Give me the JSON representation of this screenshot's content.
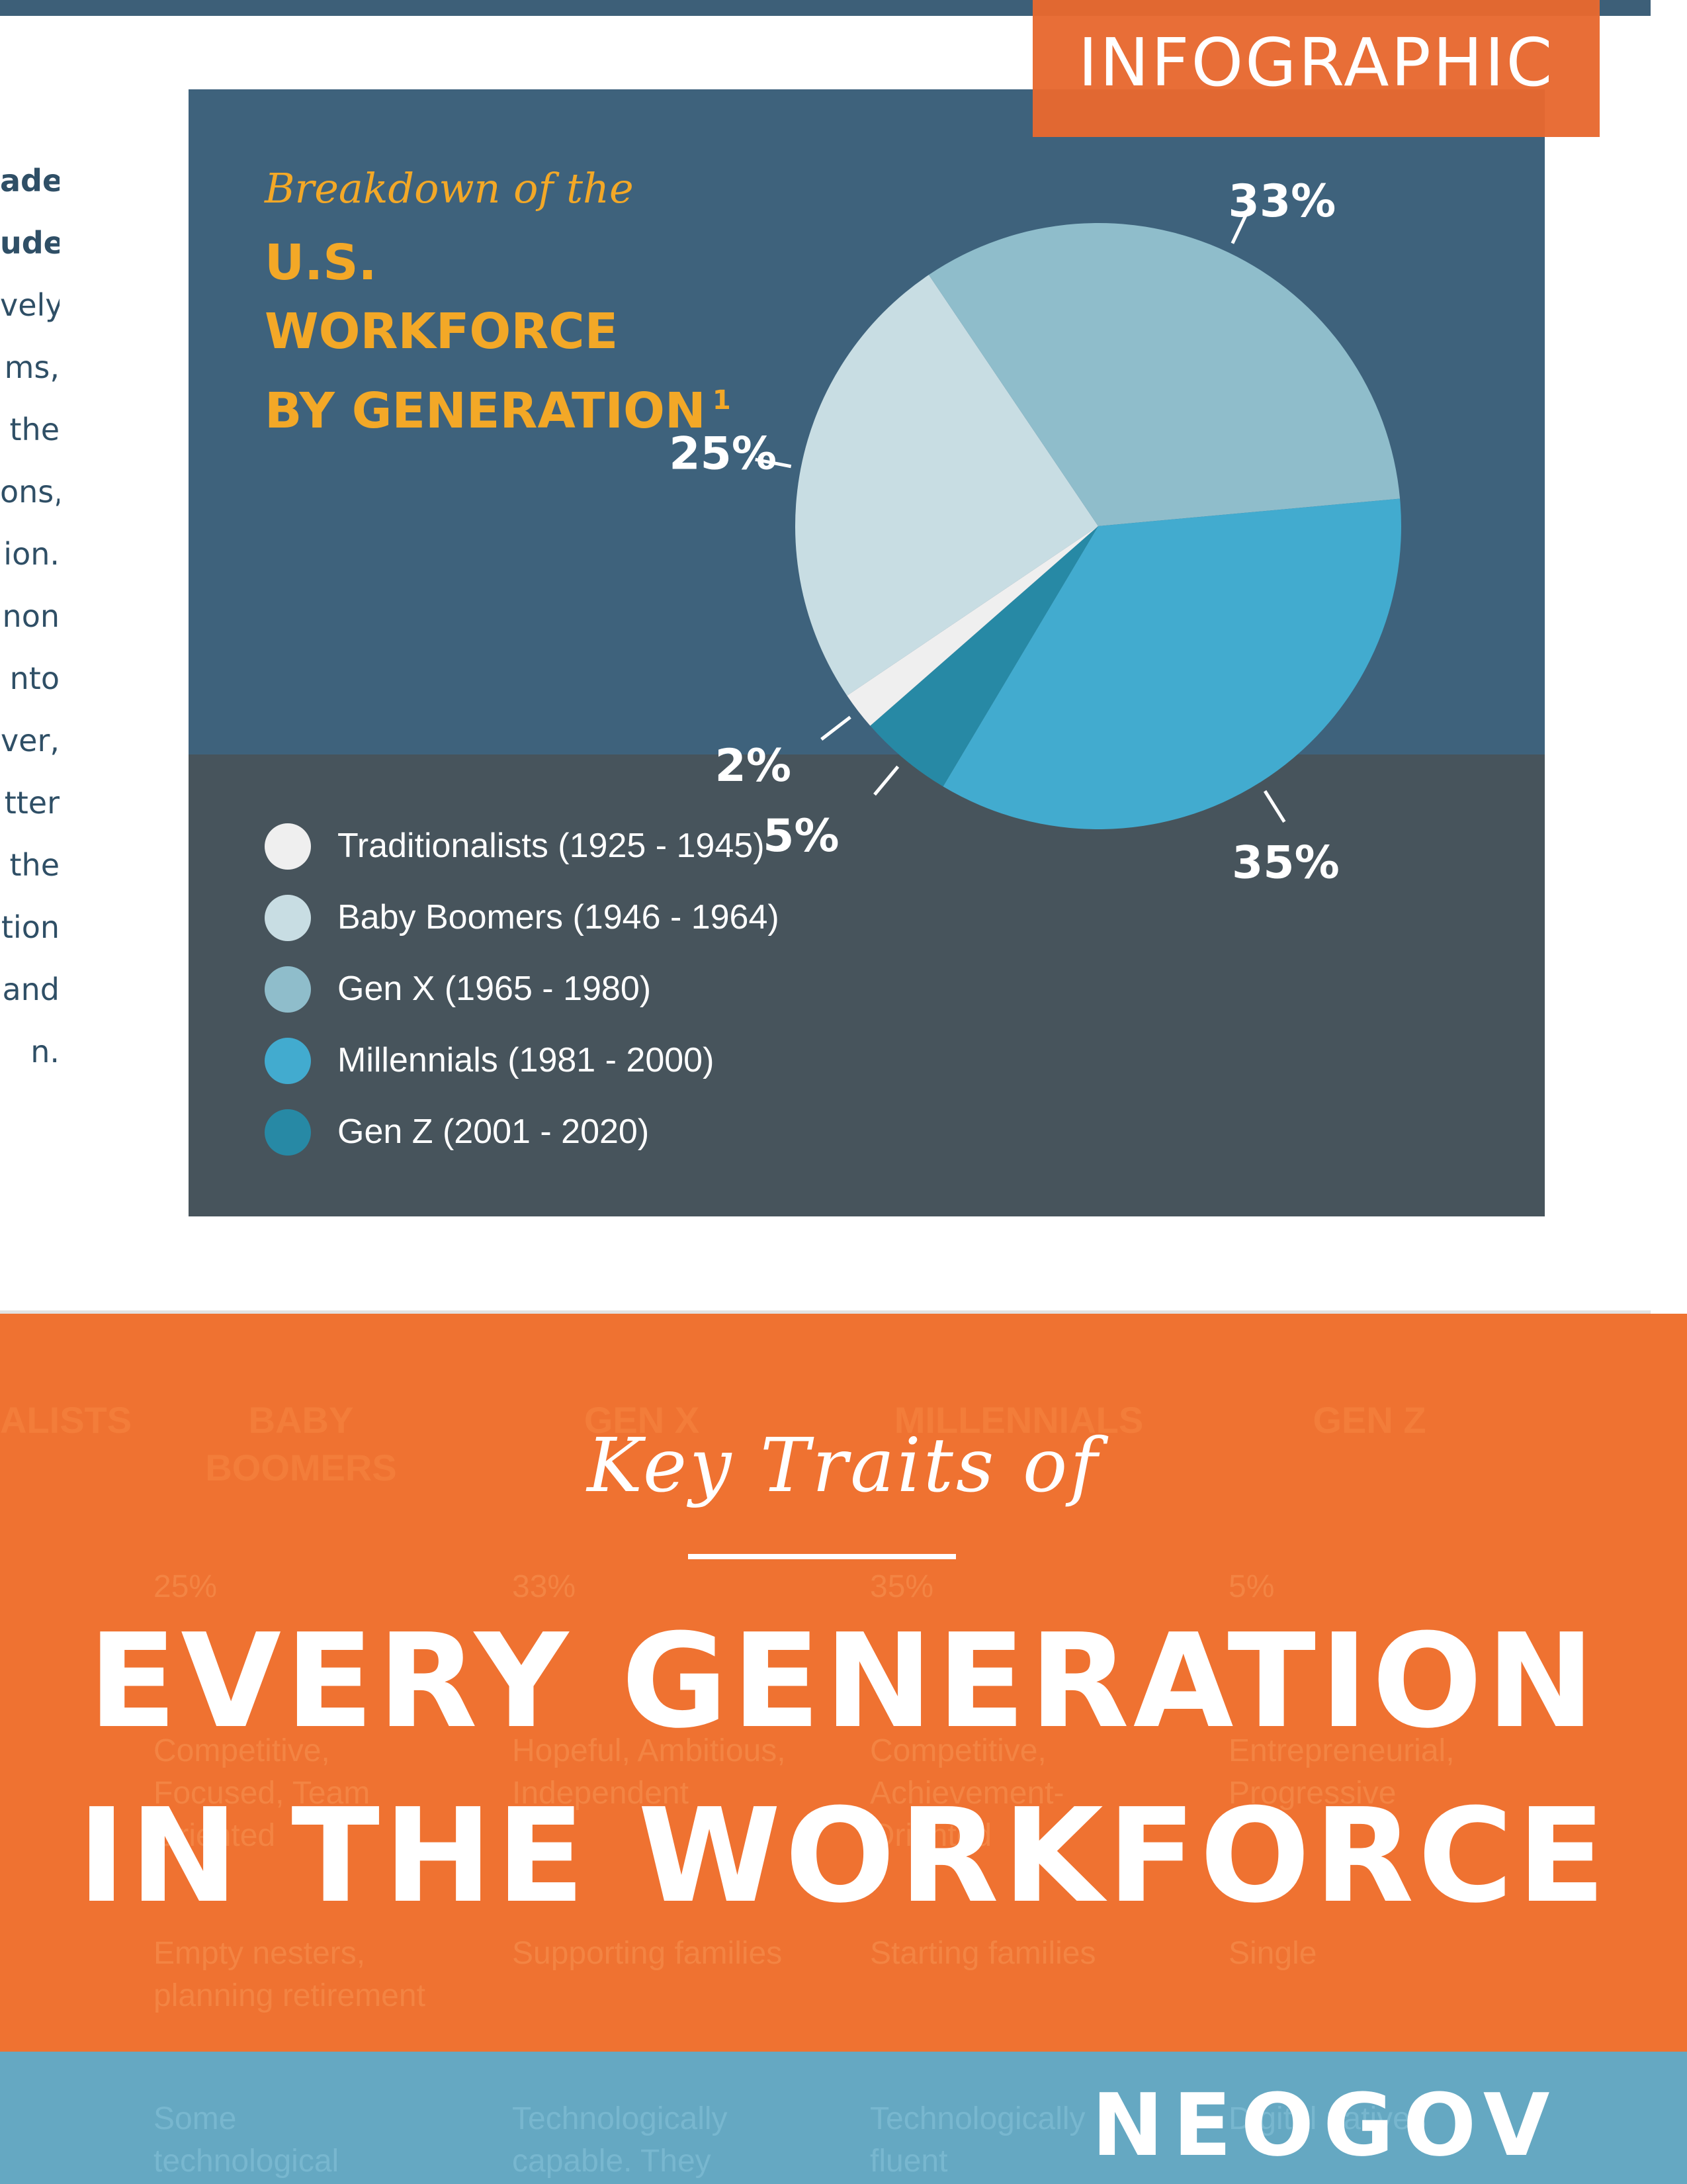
{
  "left_column": {
    "lines": [
      {
        "text": "ade",
        "bold": true
      },
      {
        "text": "ude",
        "bold": true
      },
      {
        "text": "vely",
        "bold": false
      },
      {
        "text": "ms,",
        "bold": false
      },
      {
        "text": "the",
        "bold": false
      },
      {
        "text": "ons,",
        "bold": false
      },
      {
        "text": "ion.",
        "bold": false
      },
      {
        "text": "non",
        "bold": false
      },
      {
        "text": "nto",
        "bold": false
      },
      {
        "text": "ver,",
        "bold": false
      },
      {
        "text": "tter",
        "bold": false
      },
      {
        "text": "the",
        "bold": false
      },
      {
        "text": "tion",
        "bold": false
      },
      {
        "text": "and",
        "bold": false
      },
      {
        "text": "n.",
        "bold": false
      }
    ]
  },
  "tag": {
    "label": "INFOGRAPHIC",
    "color": "#e8692f"
  },
  "chart_data": {
    "type": "pie",
    "subtitle": "Breakdown of the",
    "title": "U.S. WORKFORCE BY GENERATION",
    "title_line1": "U.S. WORKFORCE",
    "title_line2": "BY GENERATION",
    "footnote": "1",
    "legend_position": "bottom-left",
    "series": [
      {
        "name": "Traditionalists (1925 - 1945)",
        "value": 2,
        "label": "2%",
        "color": "#efefef"
      },
      {
        "name": "Baby Boomers (1946 - 1964)",
        "value": 25,
        "label": "25%",
        "color": "#c8dde3"
      },
      {
        "name": "Gen X (1965 - 1980)",
        "value": 33,
        "label": "33%",
        "color": "#8fbdcb"
      },
      {
        "name": "Millennials (1981 - 2000)",
        "value": 35,
        "label": "35%",
        "color": "#42abcf"
      },
      {
        "name": "Gen Z (2001 - 2020)",
        "value": 5,
        "label": "5%",
        "color": "#2789a5"
      }
    ]
  },
  "key_traits": {
    "line1": "Key Traits of",
    "line2": "EVERY GENERATION",
    "line3": "IN THE WORKFORCE"
  },
  "background_table": {
    "headers": [
      "ALISTS",
      "BABY BOOMERS",
      "GEN X",
      "MILLENNIALS",
      "GEN Z"
    ],
    "percents": [
      "25%",
      "33%",
      "35%",
      "5%"
    ],
    "traits": [
      "Competitive, Focused, Team Oriented",
      "Hopeful, Ambitious, Independent",
      "Competitive, Achievement-Oriented",
      "Entrepreneurial, Progressive"
    ],
    "life_stage": [
      "Empty nesters, planning retirement",
      "Supporting families",
      "Starting families",
      "Single"
    ],
    "tech": [
      "Some technological",
      "Technologically capable. They",
      "Technologically fluent",
      "Digital natives"
    ]
  },
  "footer": {
    "brand": "NEOGOV"
  }
}
